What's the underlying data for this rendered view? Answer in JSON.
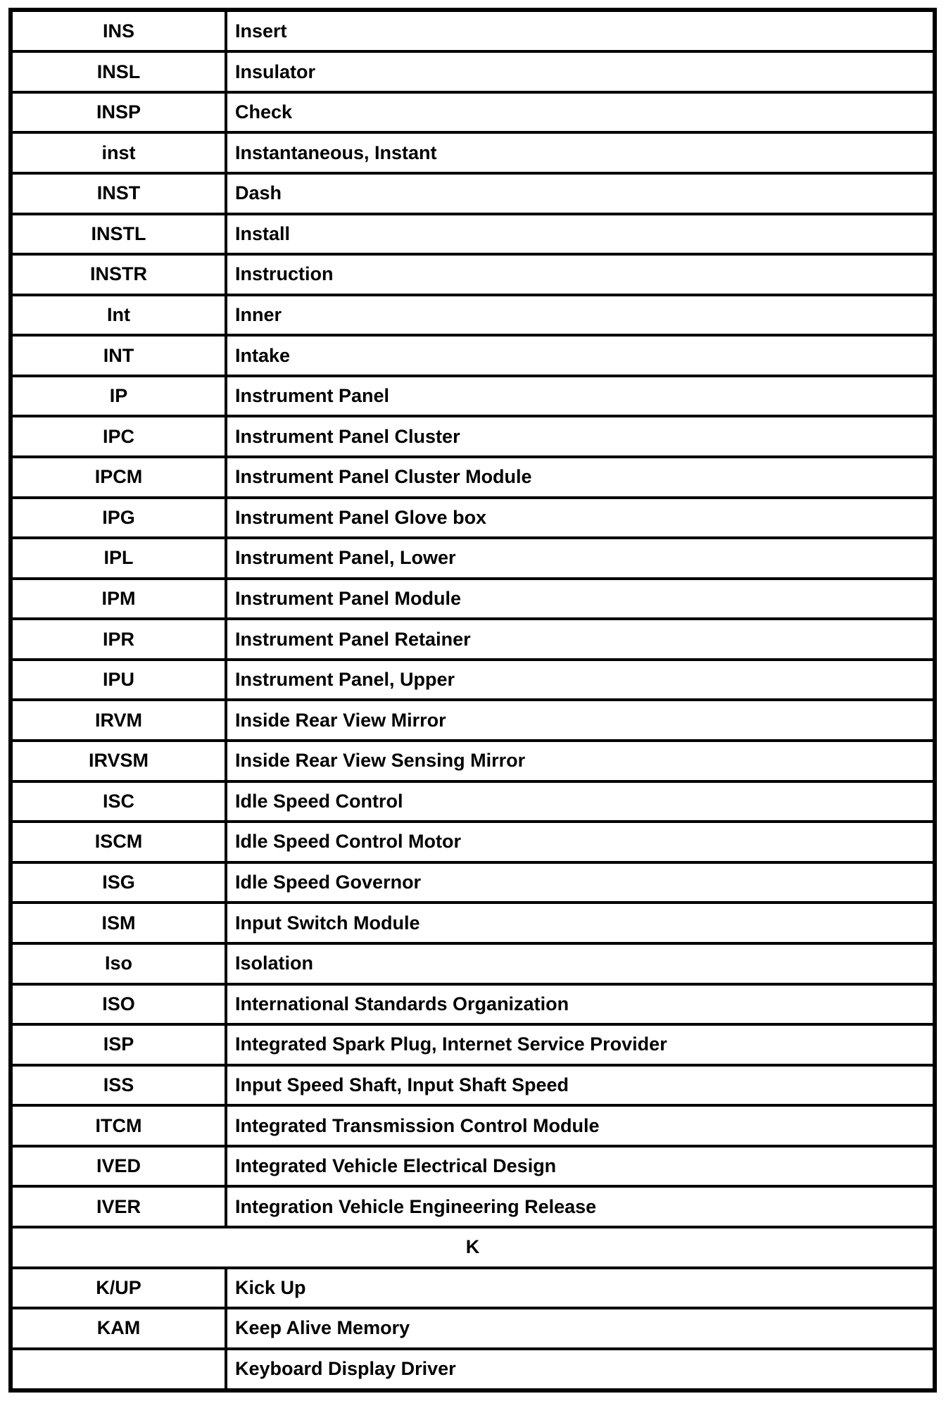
{
  "table": {
    "columns": [
      "abbreviation",
      "meaning"
    ],
    "colors": {
      "border": "#000000",
      "text": "#000000",
      "background": "#ffffff"
    },
    "rows": [
      {
        "abbr": "INS",
        "meaning": "Insert"
      },
      {
        "abbr": "INSL",
        "meaning": "Insulator"
      },
      {
        "abbr": "INSP",
        "meaning": "Check"
      },
      {
        "abbr": "inst",
        "meaning": "Instantaneous, Instant"
      },
      {
        "abbr": "INST",
        "meaning": "Dash"
      },
      {
        "abbr": "INSTL",
        "meaning": "Install"
      },
      {
        "abbr": "INSTR",
        "meaning": "Instruction"
      },
      {
        "abbr": "Int",
        "meaning": "Inner"
      },
      {
        "abbr": "INT",
        "meaning": "Intake"
      },
      {
        "abbr": "IP",
        "meaning": "Instrument Panel"
      },
      {
        "abbr": "IPC",
        "meaning": "Instrument Panel Cluster"
      },
      {
        "abbr": "IPCM",
        "meaning": "Instrument Panel Cluster Module"
      },
      {
        "abbr": "IPG",
        "meaning": "Instrument Panel Glove box"
      },
      {
        "abbr": "IPL",
        "meaning": "Instrument Panel, Lower"
      },
      {
        "abbr": "IPM",
        "meaning": "Instrument Panel Module"
      },
      {
        "abbr": "IPR",
        "meaning": "Instrument Panel Retainer"
      },
      {
        "abbr": "IPU",
        "meaning": "Instrument Panel, Upper"
      },
      {
        "abbr": "IRVM",
        "meaning": "Inside Rear View Mirror"
      },
      {
        "abbr": "IRVSM",
        "meaning": "Inside Rear View Sensing Mirror"
      },
      {
        "abbr": "ISC",
        "meaning": "Idle Speed Control"
      },
      {
        "abbr": "ISCM",
        "meaning": "Idle Speed Control Motor"
      },
      {
        "abbr": "ISG",
        "meaning": "Idle Speed Governor"
      },
      {
        "abbr": "ISM",
        "meaning": "Input Switch Module"
      },
      {
        "abbr": "Iso",
        "meaning": "Isolation"
      },
      {
        "abbr": "ISO",
        "meaning": "International Standards Organization"
      },
      {
        "abbr": "ISP",
        "meaning": "Integrated Spark Plug, Internet Service Provider"
      },
      {
        "abbr": "ISS",
        "meaning": "Input Speed Shaft, Input Shaft Speed"
      },
      {
        "abbr": "ITCM",
        "meaning": "Integrated Transmission Control Module"
      },
      {
        "abbr": "IVED",
        "meaning": "Integrated Vehicle Electrical Design"
      },
      {
        "abbr": "IVER",
        "meaning": "Integration Vehicle Engineering Release"
      },
      {
        "type": "section",
        "label": "K"
      },
      {
        "abbr": "K/UP",
        "meaning": "Kick Up"
      },
      {
        "abbr": "KAM",
        "meaning": "Keep Alive Memory"
      },
      {
        "abbr": "",
        "meaning": "Keyboard Display Driver"
      }
    ]
  }
}
